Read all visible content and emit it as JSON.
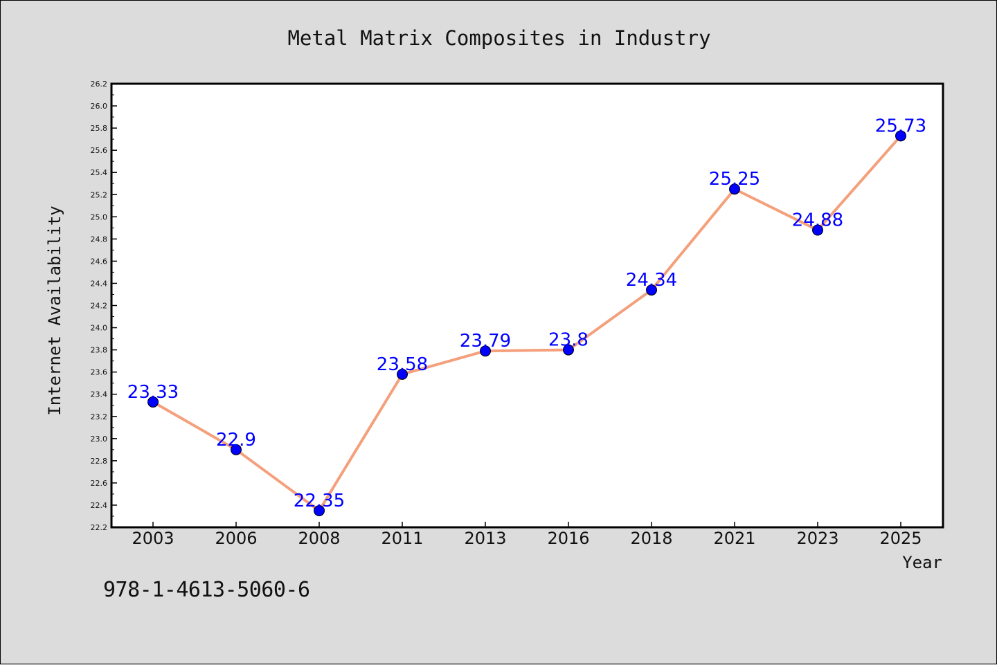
{
  "chart_data": {
    "type": "line",
    "title": "Metal Matrix Composites in Industry",
    "xlabel": "Year",
    "ylabel": "Internet Availability",
    "categories": [
      "2003",
      "2006",
      "2008",
      "2011",
      "2013",
      "2016",
      "2018",
      "2021",
      "2023",
      "2025"
    ],
    "series": [
      {
        "values": [
          23.33,
          22.9,
          22.35,
          23.58,
          23.79,
          23.8,
          24.34,
          25.25,
          24.88,
          25.73
        ],
        "labels": [
          "23.33",
          "22.9",
          "22.35",
          "23.58",
          "23.79",
          "23.8",
          "24.34",
          "25.25",
          "24.88",
          "25.73"
        ],
        "line_color": "#f4a07c",
        "marker_color": "#0000ff",
        "label_color": "#0000ff"
      }
    ],
    "ylim": [
      22.2,
      26.2
    ],
    "yticks": [
      "22.2",
      "22.4",
      "22.6",
      "22.8",
      "23.0",
      "23.2",
      "23.4",
      "23.6",
      "23.8",
      "24.0",
      "24.2",
      "24.4",
      "24.6",
      "24.8",
      "25.0",
      "25.2",
      "25.4",
      "25.6",
      "25.8",
      "26.0",
      "26.2"
    ],
    "grid": false,
    "legend": "none"
  },
  "footer": {
    "isbn": "978-1-4613-5060-6"
  }
}
